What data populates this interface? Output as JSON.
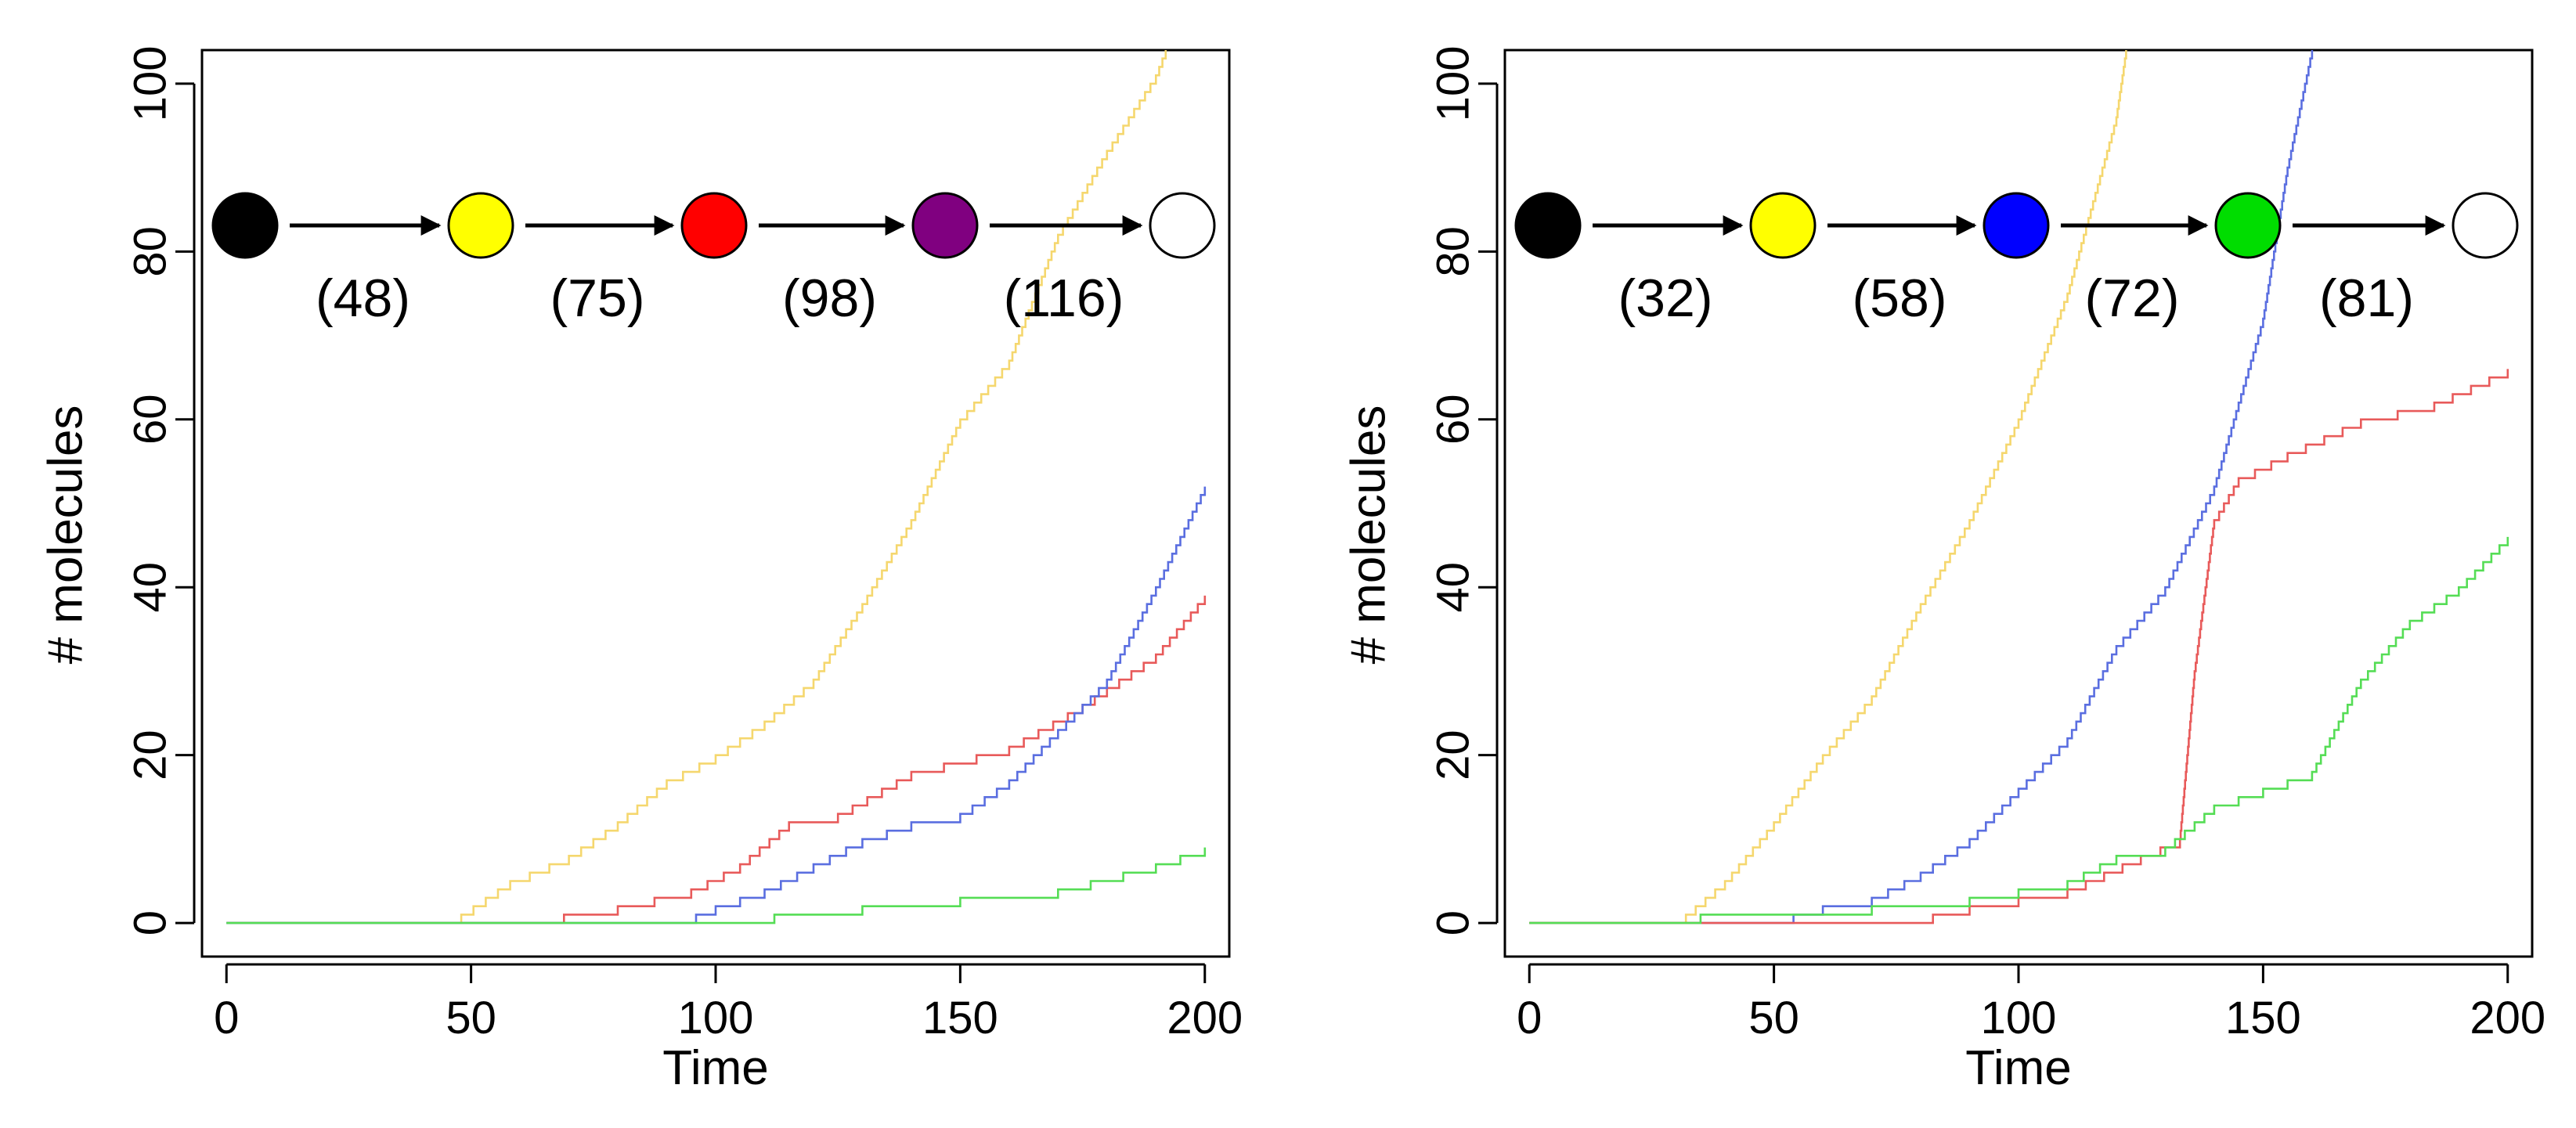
{
  "chart_data": [
    {
      "type": "line",
      "title": "",
      "xlabel": "Time",
      "ylabel": "# molecules",
      "xlim": [
        -5,
        205
      ],
      "ylim": [
        -4,
        104
      ],
      "xticks": [
        0,
        50,
        100,
        150,
        200
      ],
      "yticks": [
        0,
        20,
        40,
        60,
        80,
        100
      ],
      "grid": false,
      "pathway": {
        "nodes": [
          {
            "name": "start",
            "color": "#000000"
          },
          {
            "name": "yellow",
            "color": "#ffff00"
          },
          {
            "name": "red",
            "color": "#ff0000"
          },
          {
            "name": "purple",
            "color": "#800080"
          },
          {
            "name": "end",
            "color": "#ffffff"
          }
        ],
        "rates": [
          "(48)",
          "(75)",
          "(98)",
          "(116)"
        ]
      },
      "series": [
        {
          "name": "yellow",
          "color": "#f5d76e",
          "x": [
            0,
            23,
            48,
            58,
            70,
            80,
            90,
            100,
            110,
            120,
            130,
            140,
            150,
            160,
            170,
            180,
            190,
            192
          ],
          "y": [
            0,
            0,
            1,
            5,
            8,
            12,
            17,
            20,
            24,
            29,
            38,
            48,
            60,
            67,
            82,
            92,
            101,
            104
          ]
        },
        {
          "name": "red",
          "color": "#e85a5a",
          "x": [
            0,
            58,
            80,
            95,
            105,
            115,
            125,
            140,
            160,
            175,
            190,
            200
          ],
          "y": [
            0,
            0,
            2,
            4,
            7,
            12,
            13,
            18,
            21,
            26,
            32,
            39
          ]
        },
        {
          "name": "blue",
          "color": "#5a6ee0",
          "x": [
            0,
            92,
            100,
            110,
            120,
            130,
            140,
            150,
            160,
            170,
            180,
            190,
            200
          ],
          "y": [
            0,
            0,
            2,
            4,
            7,
            10,
            12,
            13,
            17,
            23,
            29,
            40,
            52
          ]
        },
        {
          "name": "green",
          "color": "#55dd55",
          "x": [
            0,
            100,
            112,
            130,
            150,
            170,
            190,
            200
          ],
          "y": [
            0,
            0,
            1,
            2,
            3,
            4,
            7,
            9
          ]
        }
      ]
    },
    {
      "type": "line",
      "title": "",
      "xlabel": "Time",
      "ylabel": "# molecules",
      "xlim": [
        -5,
        205
      ],
      "ylim": [
        -4,
        104
      ],
      "xticks": [
        0,
        50,
        100,
        150,
        200
      ],
      "yticks": [
        0,
        20,
        40,
        60,
        80,
        100
      ],
      "grid": false,
      "pathway": {
        "nodes": [
          {
            "name": "start",
            "color": "#000000"
          },
          {
            "name": "yellow",
            "color": "#ffff00"
          },
          {
            "name": "blue",
            "color": "#0000ff"
          },
          {
            "name": "green",
            "color": "#00dd00"
          },
          {
            "name": "end",
            "color": "#ffffff"
          }
        ],
        "rates": [
          "(32)",
          "(58)",
          "(72)",
          "(81)"
        ]
      },
      "series": [
        {
          "name": "yellow",
          "color": "#f5d76e",
          "x": [
            0,
            15,
            32,
            40,
            50,
            60,
            70,
            80,
            90,
            100,
            110,
            120,
            122
          ],
          "y": [
            0,
            0,
            1,
            5,
            12,
            20,
            27,
            38,
            48,
            60,
            75,
            96,
            104
          ]
        },
        {
          "name": "blue",
          "color": "#5a6ee0",
          "x": [
            0,
            48,
            60,
            70,
            80,
            90,
            100,
            110,
            120,
            130,
            140,
            150,
            155,
            160
          ],
          "y": [
            0,
            0,
            2,
            3,
            6,
            10,
            16,
            22,
            33,
            40,
            52,
            72,
            90,
            104
          ]
        },
        {
          "name": "red",
          "color": "#e85a5a",
          "x": [
            0,
            75,
            90,
            110,
            125,
            133,
            136,
            140,
            145,
            155,
            170,
            185,
            200
          ],
          "y": [
            0,
            0,
            2,
            4,
            8,
            10,
            30,
            48,
            53,
            56,
            60,
            62,
            66
          ]
        },
        {
          "name": "green",
          "color": "#55dd55",
          "x": [
            0,
            70,
            90,
            110,
            120,
            130,
            140,
            150,
            160,
            170,
            180,
            190,
            200
          ],
          "y": [
            0,
            2,
            3,
            5,
            8,
            9,
            14,
            16,
            18,
            29,
            36,
            40,
            46
          ]
        }
      ]
    }
  ]
}
